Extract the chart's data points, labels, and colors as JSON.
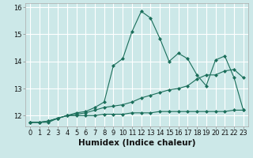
{
  "title": "",
  "xlabel": "Humidex (Indice chaleur)",
  "ylabel": "",
  "background_color": "#cce8e8",
  "grid_color": "#ffffff",
  "line_color": "#1a6e5a",
  "x_values": [
    0,
    1,
    2,
    3,
    4,
    5,
    6,
    7,
    8,
    9,
    10,
    11,
    12,
    13,
    14,
    15,
    16,
    17,
    18,
    19,
    20,
    21,
    22,
    23
  ],
  "line1_y": [
    11.75,
    11.75,
    11.75,
    11.9,
    12.0,
    12.1,
    12.15,
    12.3,
    12.5,
    13.85,
    14.1,
    15.1,
    15.85,
    15.6,
    14.85,
    14.0,
    14.3,
    14.1,
    13.5,
    13.1,
    14.05,
    14.2,
    13.4,
    12.2
  ],
  "line2_y": [
    11.75,
    11.75,
    11.8,
    11.9,
    12.0,
    12.05,
    12.1,
    12.2,
    12.3,
    12.35,
    12.4,
    12.5,
    12.65,
    12.75,
    12.85,
    12.95,
    13.0,
    13.1,
    13.35,
    13.5,
    13.5,
    13.65,
    13.7,
    13.4
  ],
  "line3_y": [
    11.75,
    11.75,
    11.8,
    11.9,
    12.0,
    12.0,
    12.0,
    12.0,
    12.05,
    12.05,
    12.05,
    12.1,
    12.1,
    12.1,
    12.15,
    12.15,
    12.15,
    12.15,
    12.15,
    12.15,
    12.15,
    12.15,
    12.2,
    12.2
  ],
  "ylim": [
    11.6,
    16.15
  ],
  "xlim": [
    -0.5,
    23.5
  ],
  "yticks": [
    12,
    13,
    14,
    15,
    16
  ],
  "xticks": [
    0,
    1,
    2,
    3,
    4,
    5,
    6,
    7,
    8,
    9,
    10,
    11,
    12,
    13,
    14,
    15,
    16,
    17,
    18,
    19,
    20,
    21,
    22,
    23
  ],
  "tick_fontsize": 6,
  "xlabel_fontsize": 7.5,
  "marker_size": 2.5,
  "line_width": 0.8
}
